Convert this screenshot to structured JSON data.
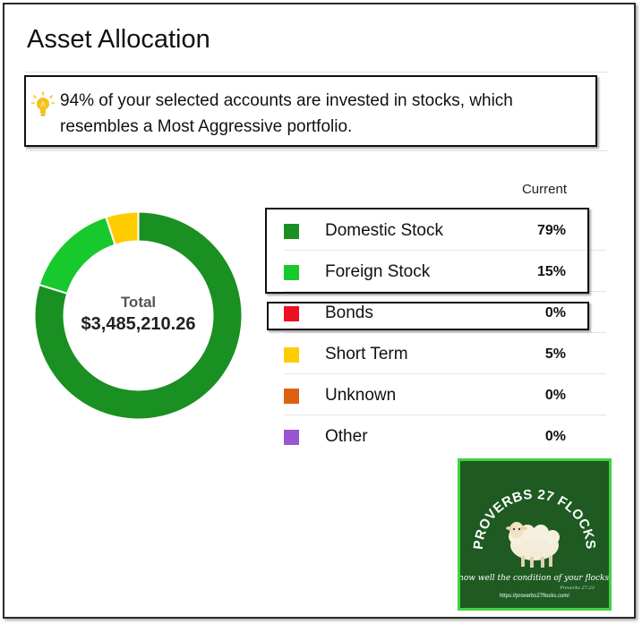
{
  "header": {
    "title": "Asset Allocation"
  },
  "callout": {
    "icon": "lightbulb-icon",
    "text": "94% of your selected accounts are invested in stocks, which resembles a Most Aggressive portfolio."
  },
  "table": {
    "column_header": "Current",
    "rows": [
      {
        "label": "Domestic Stock",
        "value": "79%",
        "percent": 79,
        "color": "#1a8f22"
      },
      {
        "label": "Foreign Stock",
        "value": "15%",
        "percent": 15,
        "color": "#17c92c"
      },
      {
        "label": "Bonds",
        "value": "0%",
        "percent": 0,
        "color": "#ee1122"
      },
      {
        "label": "Short Term",
        "value": "5%",
        "percent": 5,
        "color": "#ffcc00"
      },
      {
        "label": "Unknown",
        "value": "0%",
        "percent": 0,
        "color": "#dd6010"
      },
      {
        "label": "Other",
        "value": "0%",
        "percent": 0,
        "color": "#9a55d0"
      }
    ]
  },
  "donut": {
    "total_label": "Total",
    "total_value": "$3,485,210.26"
  },
  "badge": {
    "title": "PROVERBS 27 FLOCKS",
    "tagline": "Know well the condition of your flocks...",
    "reference": "Proverbs 27:23",
    "url": "https://proverbs27flocks.com/"
  },
  "chart_data": {
    "type": "pie",
    "categories": [
      "Domestic Stock",
      "Foreign Stock",
      "Bonds",
      "Short Term",
      "Unknown",
      "Other"
    ],
    "values": [
      79,
      15,
      0,
      5,
      0,
      0
    ],
    "colors": [
      "#1a8f22",
      "#17c92c",
      "#ee1122",
      "#ffcc00",
      "#dd6010",
      "#9a55d0"
    ],
    "title": "Asset Allocation"
  }
}
